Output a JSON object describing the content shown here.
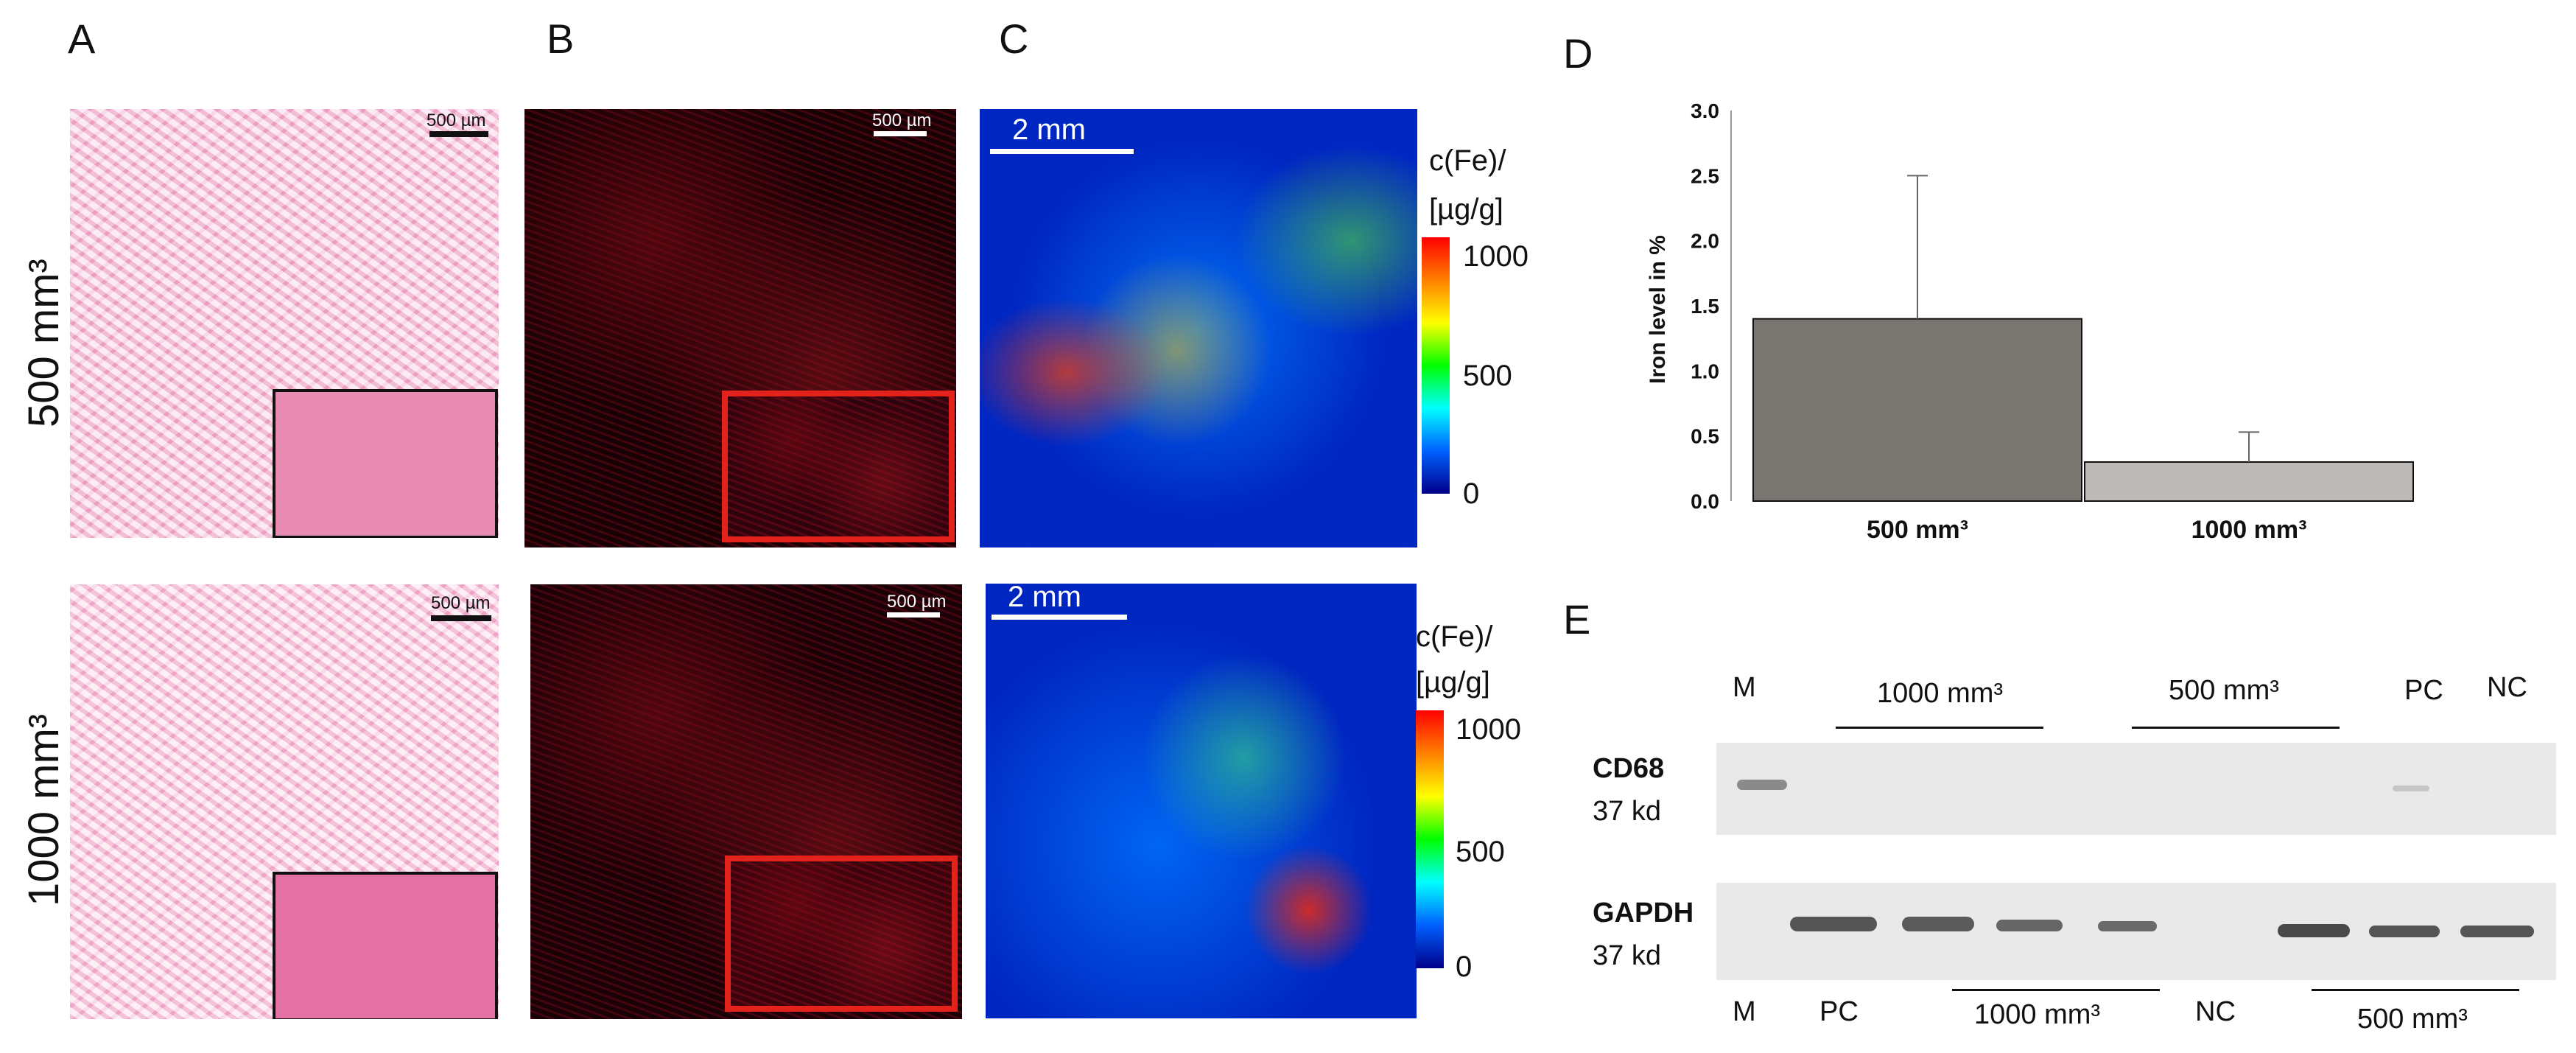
{
  "panels": {
    "a": "A",
    "b": "B",
    "c": "C",
    "d": "D",
    "e": "E"
  },
  "rows": {
    "top": "500 mm³",
    "bottom": "1000 mm³"
  },
  "scale": {
    "um": "500 µm",
    "mm": "2 mm"
  },
  "colorbar": {
    "title1": "c(Fe)/",
    "title2": "[µg/g]",
    "ticks": [
      "1000",
      "500",
      "0"
    ]
  },
  "chart_data": {
    "type": "bar",
    "categories": [
      "500 mm³",
      "1000 mm³"
    ],
    "values": [
      1.4,
      0.3
    ],
    "errors": [
      1.1,
      0.23
    ],
    "ylabel": "Iron level in %",
    "ylim": [
      0,
      3.0
    ],
    "yticks": [
      "3.0",
      "2.5",
      "2.0",
      "1.5",
      "1.0",
      "0.5",
      "0.0"
    ],
    "bar_colors": [
      "#797571",
      "#bcb9b6"
    ],
    "grid": false
  },
  "blot": {
    "top_lanes": {
      "m": "M",
      "g1000": "1000 mm³",
      "g500": "500 mm³",
      "pc": "PC",
      "nc": "NC"
    },
    "bottom_lanes": {
      "m": "M",
      "pc": "PC",
      "g1000": "1000 mm³",
      "nc": "NC",
      "g500": "500 mm³"
    },
    "cd68": {
      "name": "CD68",
      "kd": "37 kd"
    },
    "gapdh": {
      "name": "GAPDH",
      "kd": "37 kd"
    }
  }
}
